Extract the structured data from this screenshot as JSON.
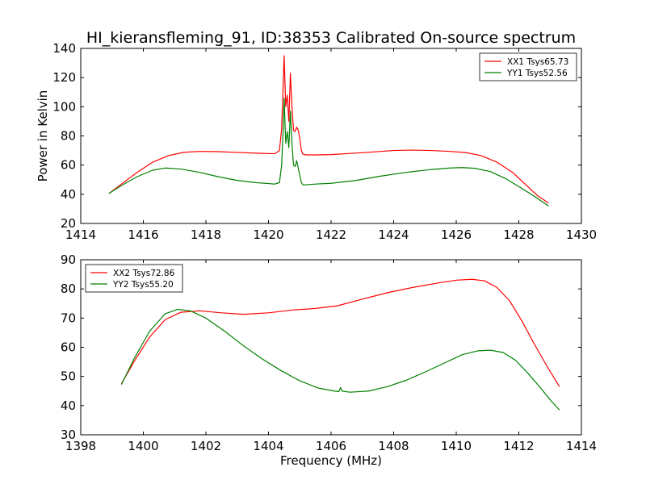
{
  "figure_title": "HI_kieransfleming_91, ID:38353 Calibrated On-source spectrum",
  "chart_data": [
    {
      "type": "line",
      "xlabel": "",
      "ylabel": "Power in Kelvin",
      "xlim": [
        1414,
        1430
      ],
      "ylim": [
        20,
        140
      ],
      "xticks": [
        1414,
        1416,
        1418,
        1420,
        1422,
        1424,
        1426,
        1428,
        1430
      ],
      "yticks": [
        20,
        40,
        60,
        80,
        100,
        120,
        140
      ],
      "grid": false,
      "legend_position": "top-right",
      "series": [
        {
          "name": "XX1 Tsys65.73",
          "color": "#ff0000",
          "x": [
            1414.9,
            1415.3,
            1415.8,
            1416.3,
            1416.8,
            1417.3,
            1417.8,
            1418.4,
            1419.0,
            1419.6,
            1420.2,
            1420.35,
            1420.42,
            1420.47,
            1420.5,
            1420.55,
            1420.6,
            1420.65,
            1420.7,
            1420.75,
            1420.8,
            1420.85,
            1420.9,
            1420.95,
            1421.0,
            1421.05,
            1421.1,
            1421.2,
            1421.5,
            1422.0,
            1423.0,
            1424.0,
            1424.6,
            1425.2,
            1425.8,
            1426.3,
            1426.8,
            1427.3,
            1427.8,
            1428.3,
            1428.6,
            1428.95
          ],
          "y": [
            40.5,
            47,
            55,
            62,
            66.5,
            68.8,
            69.4,
            69.2,
            68.7,
            68.2,
            67.8,
            70,
            85,
            115,
            135,
            100,
            108,
            90,
            123,
            100,
            84,
            83,
            86,
            84,
            78,
            70,
            67.5,
            67,
            67,
            67.2,
            68.5,
            70,
            70.3,
            70,
            69.4,
            68.6,
            66.5,
            62,
            55,
            45,
            39,
            34
          ]
        },
        {
          "name": "YY1 Tsys52.56",
          "color": "#008000",
          "x": [
            1414.9,
            1415.3,
            1415.8,
            1416.3,
            1416.7,
            1417.2,
            1417.8,
            1418.4,
            1419.0,
            1419.6,
            1420.2,
            1420.35,
            1420.42,
            1420.47,
            1420.5,
            1420.55,
            1420.6,
            1420.65,
            1420.7,
            1420.75,
            1420.8,
            1420.85,
            1420.9,
            1420.95,
            1421.0,
            1421.05,
            1421.1,
            1421.2,
            1421.5,
            1422.0,
            1422.8,
            1423.6,
            1424.4,
            1425.2,
            1425.8,
            1426.2,
            1426.6,
            1427.1,
            1427.6,
            1428.1,
            1428.5,
            1428.95
          ],
          "y": [
            40.5,
            46,
            52,
            56.5,
            58,
            57.3,
            55,
            52,
            49.5,
            48,
            47,
            48,
            60,
            85,
            106,
            75,
            83,
            72,
            97,
            75,
            60,
            59,
            63,
            58,
            53,
            48,
            46.5,
            46.5,
            47,
            47.5,
            49.5,
            52.5,
            55,
            57,
            58,
            58.3,
            57.8,
            55.5,
            50.5,
            44,
            38.5,
            32
          ]
        }
      ]
    },
    {
      "type": "line",
      "xlabel": "Frequency (MHz)",
      "ylabel": "",
      "xlim": [
        1398,
        1414
      ],
      "ylim": [
        30,
        90
      ],
      "xticks": [
        1398,
        1400,
        1402,
        1404,
        1406,
        1408,
        1410,
        1412,
        1414
      ],
      "yticks": [
        30,
        40,
        50,
        60,
        70,
        80,
        90
      ],
      "grid": false,
      "legend_position": "top-left",
      "series": [
        {
          "name": "XX2 Tsys72.86",
          "color": "#ff0000",
          "x": [
            1399.3,
            1399.7,
            1400.2,
            1400.7,
            1401.2,
            1401.8,
            1402.5,
            1403.2,
            1404.0,
            1404.8,
            1405.5,
            1406.2,
            1407.0,
            1407.8,
            1408.6,
            1409.4,
            1410.0,
            1410.5,
            1410.9,
            1411.3,
            1411.7,
            1412.1,
            1412.5,
            1412.9,
            1413.3
          ],
          "y": [
            47.5,
            55,
            63.5,
            69.5,
            72,
            72.5,
            71.8,
            71.3,
            71.8,
            72.8,
            73.3,
            74.2,
            76.5,
            78.7,
            80.5,
            82,
            83,
            83.3,
            82.8,
            80.5,
            76,
            69,
            61,
            53.5,
            46.5
          ]
        },
        {
          "name": "YY2 Tsys55.20",
          "color": "#008000",
          "x": [
            1399.3,
            1399.7,
            1400.2,
            1400.7,
            1401.1,
            1401.5,
            1402.0,
            1402.6,
            1403.2,
            1403.8,
            1404.4,
            1405.0,
            1405.6,
            1406.1,
            1406.25,
            1406.3,
            1406.35,
            1406.6,
            1407.2,
            1407.8,
            1408.4,
            1409.0,
            1409.6,
            1410.2,
            1410.7,
            1411.1,
            1411.5,
            1411.9,
            1412.3,
            1412.7,
            1413.0,
            1413.3
          ],
          "y": [
            47.2,
            56,
            65.5,
            71.5,
            73,
            72.5,
            70,
            65.5,
            60.5,
            56,
            52,
            48.5,
            46,
            45,
            44.8,
            46.2,
            45,
            44.6,
            45,
            46.5,
            48.7,
            51.5,
            54.5,
            57.5,
            58.8,
            59,
            58.2,
            55.5,
            51,
            46,
            42,
            38.5
          ]
        }
      ]
    }
  ]
}
